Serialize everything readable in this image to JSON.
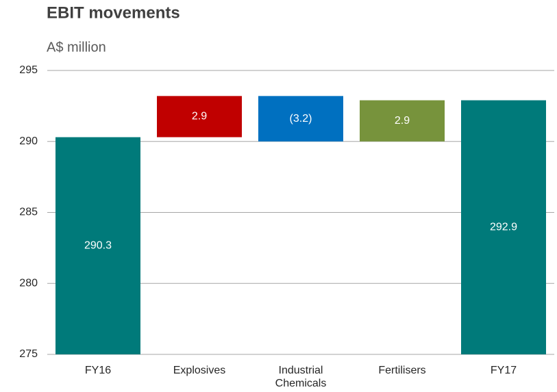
{
  "chart_data": {
    "type": "waterfall",
    "title": "EBIT movements",
    "subtitle": "A$ million",
    "categories": [
      "FY16",
      "Explosives",
      "Industrial Chemicals",
      "Fertilisers",
      "FY17"
    ],
    "values": [
      290.3,
      2.9,
      -3.2,
      2.9,
      292.9
    ],
    "value_labels": [
      "290.3",
      "2.9",
      "(3.2)",
      "2.9",
      "292.9"
    ],
    "is_total": [
      true,
      false,
      false,
      false,
      true
    ],
    "colors": [
      "#007a7a",
      "#c00000",
      "#0070c0",
      "#77933c",
      "#007a7a"
    ],
    "ylim": [
      275,
      295
    ],
    "yticks": [
      275,
      280,
      285,
      290,
      295
    ],
    "grid": true
  }
}
